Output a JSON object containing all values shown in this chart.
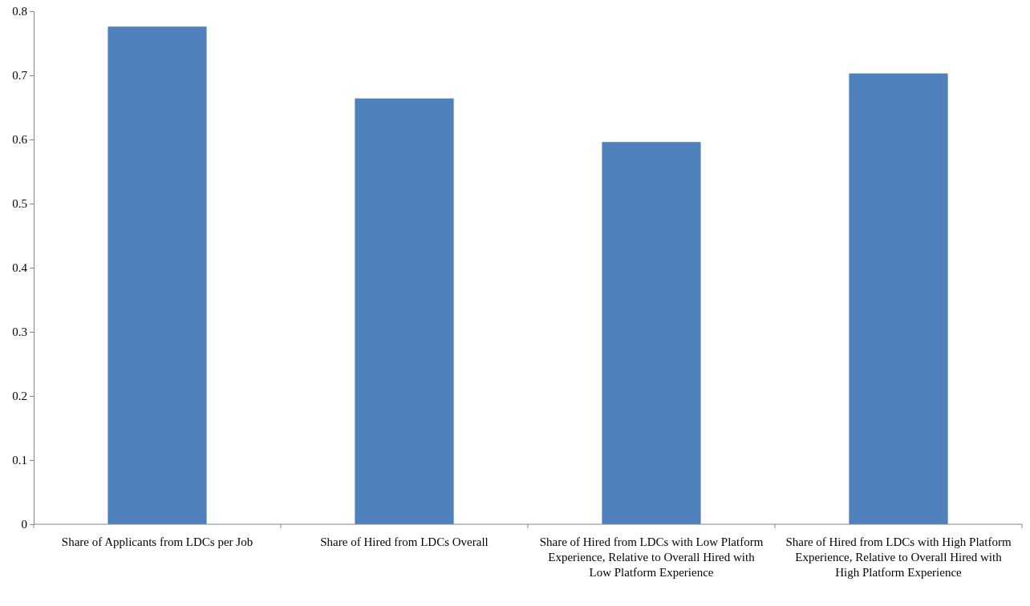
{
  "chart_data": {
    "type": "bar",
    "categories": [
      "Share of Applicants from LDCs per Job",
      "Share of Hired from LDCs Overall",
      "Share of Hired from LDCs with Low Platform Experience, Relative to Overall Hired with Low Platform Experience",
      "Share of Hired from LDCs with High Platform Experience, Relative to Overall Hired with High Platform Experience"
    ],
    "values": [
      0.776,
      0.664,
      0.596,
      0.703
    ],
    "color": "#4f81bd",
    "ylim": [
      0,
      0.8
    ],
    "yticks": [
      0,
      0.1,
      0.2,
      0.3,
      0.4,
      0.5,
      0.6,
      0.7,
      0.8
    ],
    "grid": false
  }
}
